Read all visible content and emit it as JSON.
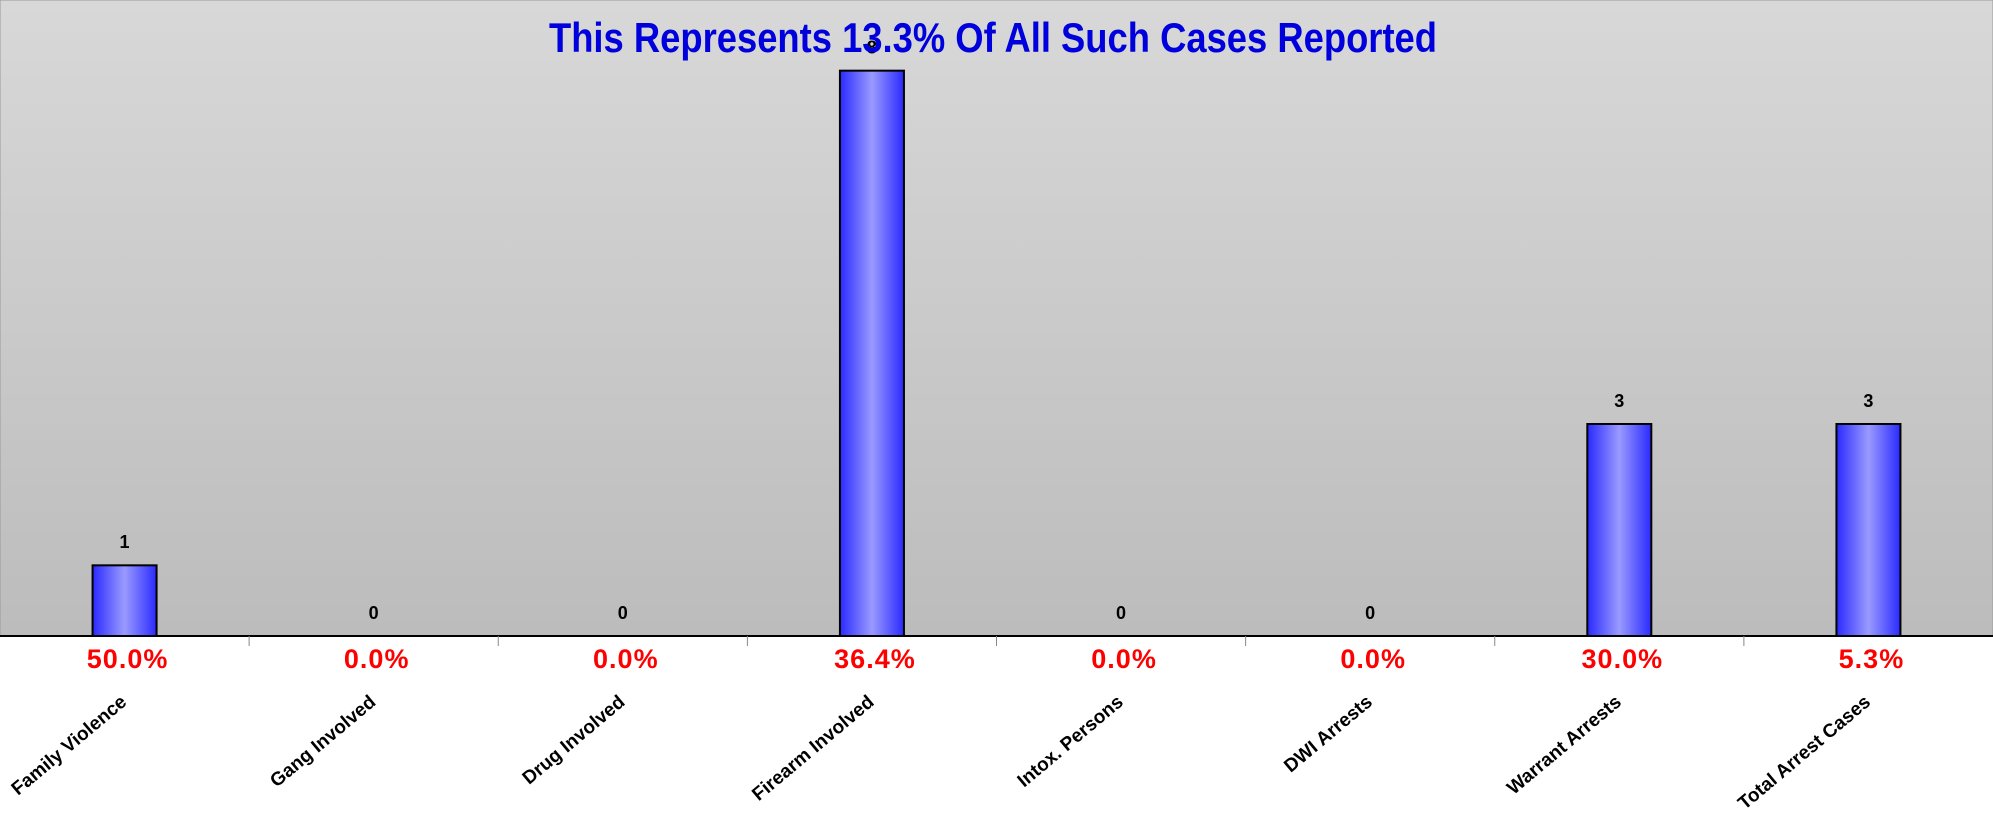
{
  "chart_data": {
    "type": "bar",
    "title": "This Represents 13.3% Of All Such Cases Reported",
    "categories": [
      "Family Violence",
      "Gang Involved",
      "Drug Involved",
      "Firearm Involved",
      "Intox. Persons",
      "DWI Arrests",
      "Warrant Arrests",
      "Total Arrest Cases"
    ],
    "values": [
      1,
      0,
      0,
      8,
      0,
      0,
      3,
      3
    ],
    "rate_labels": [
      "50.0%",
      "0.0%",
      "0.0%",
      "36.4%",
      "0.0%",
      "0.0%",
      "30.0%",
      "5.3%"
    ],
    "color": "#6666ff",
    "ylim": [
      0,
      9
    ]
  }
}
